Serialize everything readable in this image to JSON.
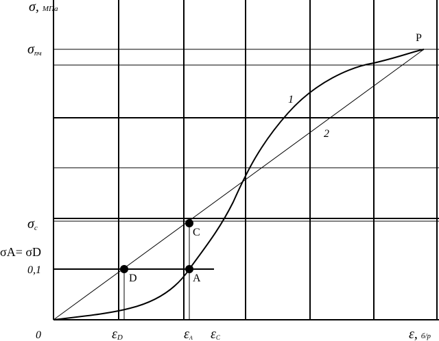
{
  "axes": {
    "y_label": {
      "symbol": "σ,",
      "unit": "МПа"
    },
    "x_label": {
      "symbol": "ε,",
      "unit": "б/р"
    },
    "origin": "0"
  },
  "y_labels": [
    {
      "symbol": "σ",
      "subscript": "пч"
    },
    {
      "symbol": "σ",
      "subscript": "c"
    },
    {
      "text": "σA= σD"
    },
    {
      "text": "0,1"
    }
  ],
  "x_labels": [
    {
      "symbol": "ε",
      "subscript": "D"
    },
    {
      "symbol": "ε",
      "subscript": "A"
    },
    {
      "symbol": "ε",
      "subscript": "C"
    }
  ],
  "curves": [
    {
      "label": "1"
    },
    {
      "label": "2"
    }
  ],
  "points": [
    {
      "label": "P"
    },
    {
      "label": "C"
    },
    {
      "label": "D"
    },
    {
      "label": "A"
    }
  ]
}
